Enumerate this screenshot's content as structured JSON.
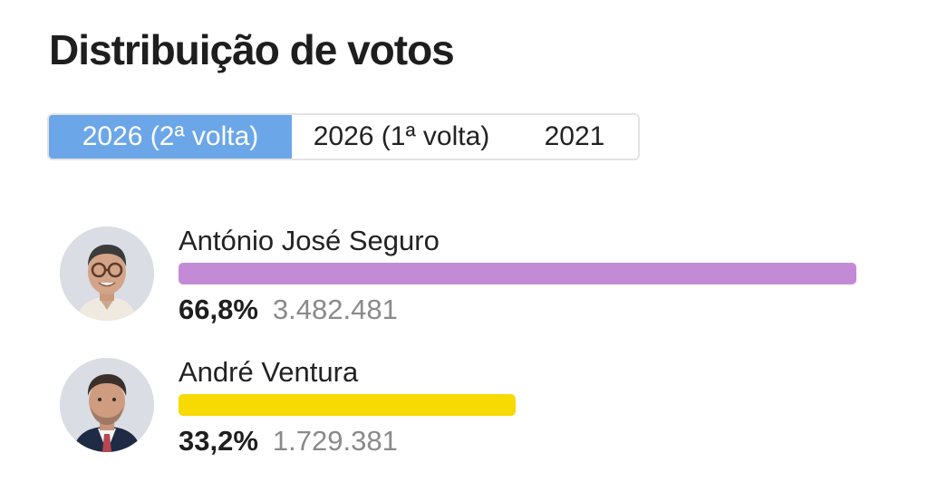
{
  "header": {
    "title": "Distribuição de votos"
  },
  "tabs": [
    {
      "label": "2026 (2ª volta)",
      "active": true
    },
    {
      "label": "2026 (1ª volta)",
      "active": false
    },
    {
      "label": "2021",
      "active": false
    }
  ],
  "colors": {
    "tab_active_bg": "#6aa6e8",
    "seguro_bar": "#c38bd6",
    "ventura_bar": "#f7da00"
  },
  "candidates": [
    {
      "name": "António José Seguro",
      "percent_text": "66,8%",
      "votes_text": "3.482.481",
      "bar_fraction": 1.0,
      "bar_color": "#c38bd6",
      "avatar_icon": "person-photo-glasses-icon"
    },
    {
      "name": "André Ventura",
      "percent_text": "33,2%",
      "votes_text": "1.729.381",
      "bar_fraction": 0.497,
      "bar_color": "#f7da00",
      "avatar_icon": "person-photo-suit-icon"
    }
  ]
}
